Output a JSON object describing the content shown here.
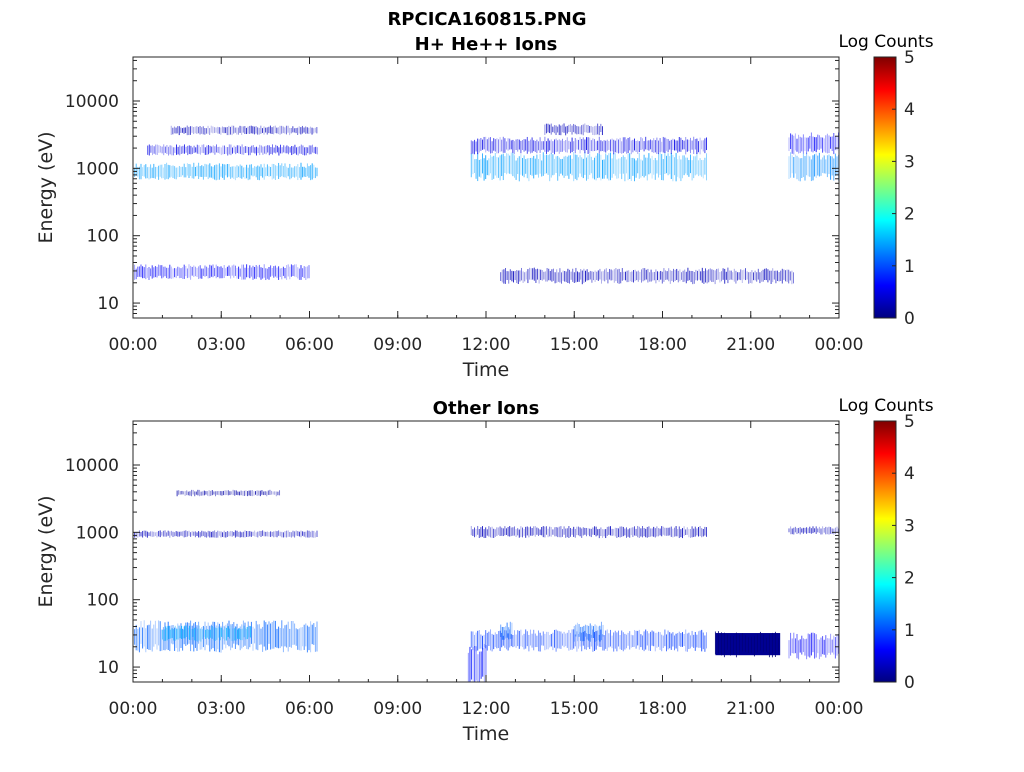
{
  "figure": {
    "title": "RPCICA160815.PNG"
  },
  "colormap": {
    "name": "jet",
    "stops": [
      "#00007f",
      "#0000ff",
      "#007fff",
      "#00ffff",
      "#7fff7f",
      "#ffff00",
      "#ff7f00",
      "#ff0000",
      "#7f0000"
    ]
  },
  "chart_data": [
    {
      "type": "heatmap",
      "title": "H+ He++ Ions",
      "xlabel": "Time",
      "ylabel": "Energy (eV)",
      "y_scale": "log",
      "xlim_hours": [
        0,
        24
      ],
      "ylim": [
        6,
        45000
      ],
      "x_ticks": [
        "00:00",
        "03:00",
        "06:00",
        "09:00",
        "12:00",
        "15:00",
        "18:00",
        "21:00",
        "00:00"
      ],
      "y_ticks": [
        "10",
        "100",
        "1000",
        "10000"
      ],
      "colorbar": {
        "label": "Log Counts",
        "range": [
          0,
          5
        ],
        "ticks": [
          "0",
          "1",
          "2",
          "3",
          "4",
          "5"
        ]
      },
      "bands": [
        {
          "t": [
            0.0,
            6.3
          ],
          "e": [
            700,
            1150
          ],
          "log_counts": 1.4
        },
        {
          "t": [
            0.5,
            6.3
          ],
          "e": [
            1600,
            2200
          ],
          "log_counts": 0.5
        },
        {
          "t": [
            1.3,
            6.3
          ],
          "e": [
            3200,
            4200
          ],
          "log_counts": 0.3
        },
        {
          "t": [
            0.0,
            6.0
          ],
          "e": [
            23,
            36
          ],
          "log_counts": 0.6
        },
        {
          "t": [
            11.5,
            19.5
          ],
          "e": [
            700,
            1600
          ],
          "log_counts": 1.4
        },
        {
          "t": [
            11.5,
            19.5
          ],
          "e": [
            1700,
            2800
          ],
          "log_counts": 0.5
        },
        {
          "t": [
            14.0,
            16.0
          ],
          "e": [
            3200,
            4500
          ],
          "log_counts": 0.3
        },
        {
          "t": [
            12.5,
            22.5
          ],
          "e": [
            20,
            32
          ],
          "log_counts": 0.3
        },
        {
          "t": [
            22.3,
            24.0
          ],
          "e": [
            700,
            1600
          ],
          "log_counts": 1.3
        },
        {
          "t": [
            22.3,
            24.0
          ],
          "e": [
            1700,
            3200
          ],
          "log_counts": 0.6
        }
      ]
    },
    {
      "type": "heatmap",
      "title": "Other Ions",
      "xlabel": "Time",
      "ylabel": "Energy (eV)",
      "y_scale": "log",
      "xlim_hours": [
        0,
        24
      ],
      "ylim": [
        6,
        45000
      ],
      "x_ticks": [
        "00:00",
        "03:00",
        "06:00",
        "09:00",
        "12:00",
        "15:00",
        "18:00",
        "21:00",
        "00:00"
      ],
      "y_ticks": [
        "10",
        "100",
        "1000",
        "10000"
      ],
      "colorbar": {
        "label": "Log Counts",
        "range": [
          0,
          5
        ],
        "ticks": [
          "0",
          "1",
          "2",
          "3",
          "4",
          "5"
        ]
      },
      "bands": [
        {
          "t": [
            0.0,
            6.3
          ],
          "e": [
            18,
            45
          ],
          "log_counts": 1.1
        },
        {
          "t": [
            1.0,
            4.0
          ],
          "e": [
            25,
            40
          ],
          "log_counts": 1.5
        },
        {
          "t": [
            0.0,
            6.3
          ],
          "e": [
            850,
            1050
          ],
          "log_counts": 0.3
        },
        {
          "t": [
            1.5,
            5.0
          ],
          "e": [
            3500,
            4200
          ],
          "log_counts": 0.2
        },
        {
          "t": [
            11.4,
            12.0
          ],
          "e": [
            6,
            20
          ],
          "log_counts": 0.7
        },
        {
          "t": [
            11.5,
            19.5
          ],
          "e": [
            18,
            34
          ],
          "log_counts": 0.9
        },
        {
          "t": [
            12.5,
            12.9
          ],
          "e": [
            25,
            45
          ],
          "log_counts": 1.1
        },
        {
          "t": [
            15.0,
            16.0
          ],
          "e": [
            25,
            45
          ],
          "log_counts": 1.1
        },
        {
          "t": [
            11.5,
            19.5
          ],
          "e": [
            850,
            1200
          ],
          "log_counts": 0.3
        },
        {
          "t": [
            19.8,
            22.0
          ],
          "e": [
            15,
            32
          ],
          "log_counts": 0.1
        },
        {
          "t": [
            22.3,
            24.0
          ],
          "e": [
            14,
            30
          ],
          "log_counts": 0.6
        },
        {
          "t": [
            22.3,
            24.0
          ],
          "e": [
            950,
            1200
          ],
          "log_counts": 0.3
        }
      ]
    }
  ]
}
